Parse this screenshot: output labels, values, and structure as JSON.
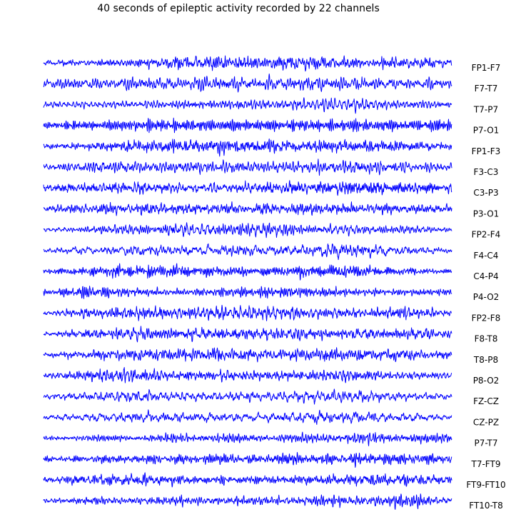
{
  "chart_data": {
    "type": "line",
    "title": "40 seconds of epileptic activity recorded by 22 channels",
    "xlabel": "",
    "ylabel": "",
    "duration_seconds": 40,
    "grid": false,
    "legend": "none",
    "line_color": "#0000ff",
    "axes_visible": false,
    "channels": [
      "FP1-F7",
      "F7-T7",
      "T7-P7",
      "P7-O1",
      "FP1-F3",
      "F3-C3",
      "C3-P3",
      "P3-O1",
      "FP2-F4",
      "F4-C4",
      "C4-P4",
      "P4-O2",
      "FP2-F8",
      "F8-T8",
      "T8-P8",
      "P8-O2",
      "FZ-CZ",
      "CZ-PZ",
      "P7-T7",
      "T7-FT9",
      "FT9-FT10",
      "FT10-T8"
    ],
    "amplitude_profile": [
      [
        0.4,
        0.4,
        0.6,
        0.9,
        1.0,
        1.0,
        1.0,
        0.7,
        0.9,
        0.5
      ],
      [
        0.6,
        0.8,
        0.8,
        0.9,
        1.0,
        0.9,
        1.0,
        0.9,
        0.7,
        0.7
      ],
      [
        0.4,
        0.4,
        0.6,
        0.7,
        0.7,
        0.6,
        0.8,
        0.9,
        0.6,
        0.5
      ],
      [
        0.5,
        0.7,
        0.9,
        0.9,
        0.8,
        0.7,
        0.9,
        0.9,
        0.8,
        1.0
      ],
      [
        0.4,
        0.5,
        0.9,
        0.9,
        1.0,
        0.9,
        0.9,
        0.9,
        0.7,
        0.5
      ],
      [
        0.4,
        0.8,
        0.8,
        0.8,
        0.8,
        0.8,
        0.9,
        0.9,
        0.8,
        0.6
      ],
      [
        0.5,
        0.7,
        0.9,
        0.8,
        0.8,
        0.8,
        0.9,
        0.9,
        0.7,
        0.6
      ],
      [
        0.5,
        0.7,
        0.9,
        0.8,
        0.8,
        0.8,
        0.9,
        0.8,
        0.7,
        0.7
      ],
      [
        0.3,
        0.5,
        0.6,
        1.0,
        1.0,
        0.9,
        0.7,
        0.8,
        0.5,
        0.3
      ],
      [
        0.3,
        0.6,
        0.7,
        0.7,
        0.8,
        0.7,
        0.9,
        1.0,
        0.6,
        0.4
      ],
      [
        0.3,
        0.6,
        0.9,
        0.8,
        0.6,
        0.6,
        0.9,
        0.8,
        0.5,
        0.3
      ],
      [
        0.3,
        0.9,
        0.7,
        0.5,
        0.6,
        0.7,
        0.7,
        0.6,
        0.5,
        0.4
      ],
      [
        0.3,
        0.8,
        1.0,
        0.9,
        1.0,
        0.9,
        0.8,
        0.7,
        1.0,
        0.4
      ],
      [
        0.3,
        0.7,
        0.9,
        0.8,
        0.9,
        0.8,
        0.8,
        0.7,
        0.9,
        0.5
      ],
      [
        0.3,
        0.7,
        0.8,
        0.8,
        1.0,
        0.8,
        0.9,
        0.8,
        0.9,
        0.5
      ],
      [
        0.3,
        0.9,
        1.0,
        0.7,
        0.7,
        0.7,
        0.8,
        0.8,
        0.6,
        0.4
      ],
      [
        0.3,
        0.6,
        0.8,
        0.6,
        0.6,
        0.6,
        0.8,
        0.8,
        0.5,
        0.4
      ],
      [
        0.3,
        0.6,
        0.7,
        0.6,
        0.6,
        0.6,
        0.8,
        0.7,
        0.6,
        0.4
      ],
      [
        0.3,
        0.4,
        0.5,
        0.6,
        0.6,
        0.6,
        0.7,
        0.7,
        0.7,
        0.6
      ],
      [
        0.4,
        0.5,
        0.6,
        0.7,
        0.7,
        0.7,
        0.8,
        0.8,
        0.8,
        0.8
      ],
      [
        0.4,
        0.7,
        0.9,
        0.7,
        0.6,
        0.6,
        0.7,
        0.8,
        0.8,
        0.6
      ],
      [
        0.3,
        0.5,
        0.5,
        0.6,
        0.6,
        0.6,
        0.7,
        0.7,
        1.0,
        0.5
      ]
    ]
  }
}
